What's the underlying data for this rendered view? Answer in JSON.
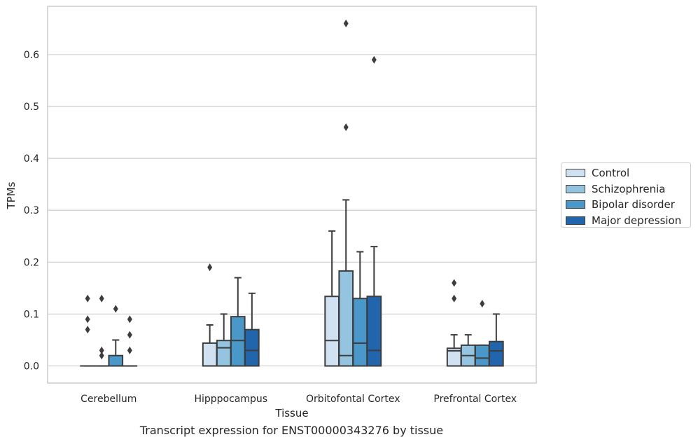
{
  "chart_data": {
    "type": "box",
    "xlabel": "Tissue",
    "ylabel": "TPMs",
    "caption": "Transcript expression for ENST00000343276 by tissue",
    "ylim": [
      -0.033,
      0.693
    ],
    "yticks": [
      0.0,
      0.1,
      0.2,
      0.3,
      0.4,
      0.5,
      0.6
    ],
    "ytick_labels": [
      "0.0",
      "0.1",
      "0.2",
      "0.3",
      "0.4",
      "0.5",
      "0.6"
    ],
    "grid": true,
    "legend_position": "right",
    "categories": [
      "Cerebellum",
      "Hipppocampus",
      "Orbitofontal Cortex",
      "Prefrontal Cortex"
    ],
    "series": [
      {
        "name": "Control",
        "color": "#d0e1f2",
        "boxes": [
          {
            "q1": 0.0,
            "median": 0.0,
            "q3": 0.0,
            "whislo": 0.0,
            "whishi": 0.0,
            "fliers": [
              0.13,
              0.09,
              0.07
            ]
          },
          {
            "q1": 0.0,
            "median": 0.0,
            "q3": 0.044,
            "whislo": 0.0,
            "whishi": 0.079,
            "fliers": [
              0.19
            ]
          },
          {
            "q1": 0.0,
            "median": 0.049,
            "q3": 0.134,
            "whislo": 0.0,
            "whishi": 0.26,
            "fliers": []
          },
          {
            "q1": 0.0,
            "median": 0.029,
            "q3": 0.034,
            "whislo": 0.0,
            "whishi": 0.06,
            "fliers": [
              0.16,
              0.13
            ]
          }
        ]
      },
      {
        "name": "Schizophrenia",
        "color": "#94c4df",
        "boxes": [
          {
            "q1": 0.0,
            "median": 0.0,
            "q3": 0.0,
            "whislo": 0.0,
            "whishi": 0.0,
            "fliers": [
              0.13,
              0.03,
              0.02
            ]
          },
          {
            "q1": 0.0,
            "median": 0.035,
            "q3": 0.049,
            "whislo": 0.0,
            "whishi": 0.1,
            "fliers": []
          },
          {
            "q1": 0.0,
            "median": 0.02,
            "q3": 0.183,
            "whislo": 0.0,
            "whishi": 0.32,
            "fliers": [
              0.66,
              0.46
            ]
          },
          {
            "q1": 0.0,
            "median": 0.02,
            "q3": 0.04,
            "whislo": 0.0,
            "whishi": 0.06,
            "fliers": []
          }
        ]
      },
      {
        "name": "Bipolar disorder",
        "color": "#4a98c9",
        "boxes": [
          {
            "q1": 0.0,
            "median": 0.0,
            "q3": 0.02,
            "whislo": 0.0,
            "whishi": 0.05,
            "fliers": [
              0.11
            ]
          },
          {
            "q1": 0.0,
            "median": 0.049,
            "q3": 0.095,
            "whislo": 0.0,
            "whishi": 0.17,
            "fliers": []
          },
          {
            "q1": 0.0,
            "median": 0.044,
            "q3": 0.13,
            "whislo": 0.0,
            "whishi": 0.22,
            "fliers": []
          },
          {
            "q1": 0.0,
            "median": 0.015,
            "q3": 0.04,
            "whislo": 0.0,
            "whishi": 0.04,
            "fliers": [
              0.12
            ]
          }
        ]
      },
      {
        "name": "Major depression",
        "color": "#2166ac",
        "boxes": [
          {
            "q1": 0.0,
            "median": 0.0,
            "q3": 0.0,
            "whislo": 0.0,
            "whishi": 0.0,
            "fliers": [
              0.09,
              0.06,
              0.03
            ]
          },
          {
            "q1": 0.0,
            "median": 0.03,
            "q3": 0.07,
            "whislo": 0.0,
            "whishi": 0.14,
            "fliers": []
          },
          {
            "q1": 0.0,
            "median": 0.03,
            "q3": 0.134,
            "whislo": 0.0,
            "whishi": 0.23,
            "fliers": [
              0.59
            ]
          },
          {
            "q1": 0.0,
            "median": 0.029,
            "q3": 0.047,
            "whislo": 0.0,
            "whishi": 0.1,
            "fliers": []
          }
        ]
      }
    ]
  }
}
